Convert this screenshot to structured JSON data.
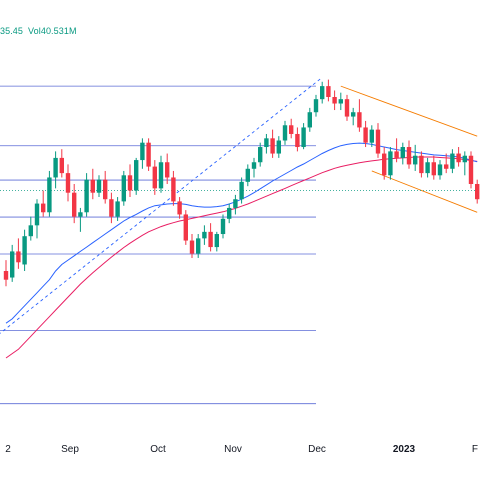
{
  "header": {
    "close_partial": "35.45",
    "volume_label": "Vol",
    "volume_value": "40.531M"
  },
  "chart_data": {
    "type": "candlestick",
    "title": "",
    "xlabel": "",
    "ylabel": "",
    "x_ticks": [
      {
        "label": "2",
        "bold": false
      },
      {
        "label": "Sep",
        "bold": false
      },
      {
        "label": "Oct",
        "bold": false
      },
      {
        "label": "Nov",
        "bold": false
      },
      {
        "label": "Dec",
        "bold": false
      },
      {
        "label": "2023",
        "bold": true
      },
      {
        "label": "F",
        "bold": false
      }
    ],
    "y_range": [
      0,
      100
    ],
    "grid": false,
    "colors": {
      "up": "#089981",
      "down": "#f23645",
      "ma_fast": "#2962ff",
      "ma_slow": "#e91e63",
      "levels": "#5b6bd6",
      "channel": "#f57c00",
      "trendline": "#2962ff"
    },
    "horizontal_levels": [
      82.5,
      68.8,
      60.9,
      52.4,
      43.9,
      26.3,
      9.5
    ],
    "candles": [
      {
        "o": 40.0,
        "h": 42.5,
        "l": 36.5,
        "c": 38.0
      },
      {
        "o": 38.5,
        "h": 46.0,
        "l": 37.5,
        "c": 44.5
      },
      {
        "o": 44.5,
        "h": 47.5,
        "l": 40.5,
        "c": 42.0
      },
      {
        "o": 41.5,
        "h": 49.5,
        "l": 40.0,
        "c": 48.0
      },
      {
        "o": 48.0,
        "h": 52.5,
        "l": 47.0,
        "c": 50.5
      },
      {
        "o": 50.5,
        "h": 56.5,
        "l": 47.5,
        "c": 55.5
      },
      {
        "o": 55.5,
        "h": 58.5,
        "l": 52.5,
        "c": 53.5
      },
      {
        "o": 53.5,
        "h": 63.0,
        "l": 52.5,
        "c": 61.5
      },
      {
        "o": 61.5,
        "h": 67.5,
        "l": 59.0,
        "c": 66.0
      },
      {
        "o": 66.0,
        "h": 68.0,
        "l": 61.5,
        "c": 62.5
      },
      {
        "o": 62.5,
        "h": 64.5,
        "l": 56.0,
        "c": 58.0
      },
      {
        "o": 58.0,
        "h": 60.0,
        "l": 51.0,
        "c": 52.5
      },
      {
        "o": 52.5,
        "h": 54.5,
        "l": 49.0,
        "c": 53.5
      },
      {
        "o": 53.5,
        "h": 62.5,
        "l": 52.5,
        "c": 61.0
      },
      {
        "o": 61.0,
        "h": 63.5,
        "l": 56.5,
        "c": 58.0
      },
      {
        "o": 58.0,
        "h": 62.0,
        "l": 57.0,
        "c": 61.0
      },
      {
        "o": 61.0,
        "h": 63.0,
        "l": 55.5,
        "c": 56.5
      },
      {
        "o": 56.5,
        "h": 58.0,
        "l": 51.0,
        "c": 52.5
      },
      {
        "o": 52.5,
        "h": 57.0,
        "l": 51.5,
        "c": 56.0
      },
      {
        "o": 56.0,
        "h": 63.0,
        "l": 55.0,
        "c": 62.0
      },
      {
        "o": 62.0,
        "h": 64.5,
        "l": 57.0,
        "c": 58.5
      },
      {
        "o": 58.5,
        "h": 66.0,
        "l": 57.5,
        "c": 65.5
      },
      {
        "o": 65.5,
        "h": 70.5,
        "l": 63.5,
        "c": 69.5
      },
      {
        "o": 69.5,
        "h": 70.5,
        "l": 63.0,
        "c": 64.0
      },
      {
        "o": 64.0,
        "h": 65.5,
        "l": 57.5,
        "c": 59.0
      },
      {
        "o": 59.0,
        "h": 66.5,
        "l": 58.0,
        "c": 65.0
      },
      {
        "o": 65.0,
        "h": 67.0,
        "l": 60.0,
        "c": 61.5
      },
      {
        "o": 61.5,
        "h": 63.0,
        "l": 55.0,
        "c": 56.0
      },
      {
        "o": 56.0,
        "h": 57.0,
        "l": 52.0,
        "c": 53.0
      },
      {
        "o": 53.0,
        "h": 54.0,
        "l": 46.0,
        "c": 47.0
      },
      {
        "o": 47.0,
        "h": 48.5,
        "l": 43.0,
        "c": 44.0
      },
      {
        "o": 44.0,
        "h": 48.5,
        "l": 43.0,
        "c": 47.5
      },
      {
        "o": 47.5,
        "h": 50.5,
        "l": 46.0,
        "c": 49.0
      },
      {
        "o": 49.0,
        "h": 51.0,
        "l": 44.5,
        "c": 45.5
      },
      {
        "o": 45.5,
        "h": 49.0,
        "l": 44.5,
        "c": 48.5
      },
      {
        "o": 48.5,
        "h": 53.0,
        "l": 47.5,
        "c": 52.0
      },
      {
        "o": 52.0,
        "h": 55.5,
        "l": 51.0,
        "c": 54.5
      },
      {
        "o": 54.5,
        "h": 57.5,
        "l": 53.0,
        "c": 56.5
      },
      {
        "o": 56.5,
        "h": 61.5,
        "l": 55.5,
        "c": 60.5
      },
      {
        "o": 60.5,
        "h": 64.5,
        "l": 59.5,
        "c": 63.5
      },
      {
        "o": 63.5,
        "h": 66.0,
        "l": 61.5,
        "c": 65.0
      },
      {
        "o": 65.0,
        "h": 69.5,
        "l": 64.0,
        "c": 68.5
      },
      {
        "o": 68.5,
        "h": 71.5,
        "l": 67.0,
        "c": 70.5
      },
      {
        "o": 70.5,
        "h": 72.5,
        "l": 66.0,
        "c": 67.0
      },
      {
        "o": 67.0,
        "h": 71.0,
        "l": 66.0,
        "c": 70.0
      },
      {
        "o": 70.0,
        "h": 74.5,
        "l": 69.0,
        "c": 73.5
      },
      {
        "o": 73.5,
        "h": 75.0,
        "l": 70.5,
        "c": 71.5
      },
      {
        "o": 71.5,
        "h": 73.0,
        "l": 67.5,
        "c": 68.5
      },
      {
        "o": 68.5,
        "h": 74.0,
        "l": 68.0,
        "c": 73.0
      },
      {
        "o": 73.0,
        "h": 77.5,
        "l": 72.0,
        "c": 76.5
      },
      {
        "o": 76.5,
        "h": 80.5,
        "l": 75.5,
        "c": 79.5
      },
      {
        "o": 79.5,
        "h": 83.5,
        "l": 78.5,
        "c": 82.5
      },
      {
        "o": 82.5,
        "h": 84.0,
        "l": 79.0,
        "c": 80.0
      },
      {
        "o": 80.0,
        "h": 81.5,
        "l": 77.0,
        "c": 78.5
      },
      {
        "o": 78.5,
        "h": 81.0,
        "l": 77.0,
        "c": 79.5
      },
      {
        "o": 79.5,
        "h": 80.5,
        "l": 74.5,
        "c": 75.5
      },
      {
        "o": 75.5,
        "h": 77.5,
        "l": 73.5,
        "c": 76.5
      },
      {
        "o": 76.5,
        "h": 79.5,
        "l": 72.0,
        "c": 73.0
      },
      {
        "o": 73.0,
        "h": 74.5,
        "l": 68.5,
        "c": 69.5
      },
      {
        "o": 69.5,
        "h": 73.5,
        "l": 68.5,
        "c": 72.5
      },
      {
        "o": 72.5,
        "h": 74.0,
        "l": 66.0,
        "c": 67.0
      },
      {
        "o": 67.0,
        "h": 68.5,
        "l": 61.0,
        "c": 62.0
      },
      {
        "o": 62.0,
        "h": 68.5,
        "l": 61.0,
        "c": 67.5
      },
      {
        "o": 67.5,
        "h": 70.5,
        "l": 65.0,
        "c": 66.0
      },
      {
        "o": 66.0,
        "h": 69.5,
        "l": 64.5,
        "c": 68.5
      },
      {
        "o": 68.5,
        "h": 70.0,
        "l": 63.5,
        "c": 64.5
      },
      {
        "o": 64.5,
        "h": 69.0,
        "l": 63.0,
        "c": 66.5
      },
      {
        "o": 66.5,
        "h": 67.5,
        "l": 61.5,
        "c": 62.5
      },
      {
        "o": 62.5,
        "h": 66.0,
        "l": 61.5,
        "c": 65.0
      },
      {
        "o": 65.0,
        "h": 66.5,
        "l": 61.0,
        "c": 62.0
      },
      {
        "o": 62.0,
        "h": 65.5,
        "l": 61.0,
        "c": 64.5
      },
      {
        "o": 64.5,
        "h": 67.0,
        "l": 62.5,
        "c": 63.5
      },
      {
        "o": 63.5,
        "h": 68.0,
        "l": 62.5,
        "c": 67.0
      },
      {
        "o": 67.0,
        "h": 68.5,
        "l": 64.0,
        "c": 65.0
      },
      {
        "o": 65.0,
        "h": 67.5,
        "l": 62.0,
        "c": 66.5
      },
      {
        "o": 66.5,
        "h": 67.5,
        "l": 59.0,
        "c": 60.0
      },
      {
        "o": 60.0,
        "h": 61.0,
        "l": 55.5,
        "c": 56.5
      },
      {
        "o": 56.5,
        "h": 62.5,
        "l": 55.5,
        "c": 61.5
      }
    ],
    "ma_fast": [
      28,
      29,
      30.5,
      32,
      33.5,
      35,
      36.5,
      38,
      40,
      41.5,
      42.5,
      43.5,
      44.5,
      45.5,
      46.5,
      47.5,
      48.5,
      49.5,
      50.5,
      51.5,
      52.3,
      53.0,
      53.8,
      54.5,
      55.0,
      55.2,
      55.4,
      55.5,
      55.5,
      55.3,
      55.0,
      54.8,
      54.7,
      54.7,
      54.8,
      55.0,
      55.4,
      55.9,
      56.5,
      57.2,
      58.0,
      58.9,
      59.8,
      60.7,
      61.5,
      62.3,
      63.1,
      63.9,
      64.6,
      65.4,
      66.2,
      67.0,
      67.7,
      68.3,
      68.8,
      69.1,
      69.3,
      69.4,
      69.3,
      69.1,
      68.8,
      68.5,
      68.2,
      67.9,
      67.7,
      67.5,
      67.3,
      67.1,
      66.9,
      66.7,
      66.6,
      66.5,
      66.4,
      66.2,
      65.9,
      65.5,
      65.1
    ],
    "ma_slow": [
      20,
      21,
      22,
      23.5,
      25,
      26.5,
      28,
      29.5,
      31,
      32.5,
      34,
      35.5,
      37,
      38.3,
      39.6,
      40.8,
      42,
      43.2,
      44.3,
      45.4,
      46.4,
      47.3,
      48.2,
      49.0,
      49.6,
      50.2,
      50.7,
      51.1,
      51.5,
      51.8,
      52.1,
      52.4,
      52.7,
      53.0,
      53.3,
      53.6,
      54.0,
      54.4,
      54.9,
      55.4,
      56.0,
      56.6,
      57.2,
      57.8,
      58.4,
      59.0,
      59.6,
      60.2,
      60.8,
      61.4,
      62.0,
      62.6,
      63.1,
      63.6,
      64.0,
      64.3,
      64.6,
      64.9,
      65.1,
      65.3,
      65.5,
      65.7,
      65.8,
      65.9,
      66.0,
      66.1,
      66.2,
      66.2,
      66.2,
      66.2,
      66.1,
      66.0,
      65.9,
      65.8,
      65.6,
      65.4,
      65.2
    ],
    "trendline": [
      {
        "i": -2,
        "v": 24.5
      },
      {
        "i": 51,
        "v": 84.5
      }
    ],
    "channel": {
      "upper": [
        {
          "i": 54,
          "v": 82.5
        },
        {
          "i": 76,
          "v": 71.0
        }
      ],
      "lower": [
        {
          "i": 59,
          "v": 63.0
        },
        {
          "i": 76,
          "v": 53.5
        }
      ]
    }
  }
}
